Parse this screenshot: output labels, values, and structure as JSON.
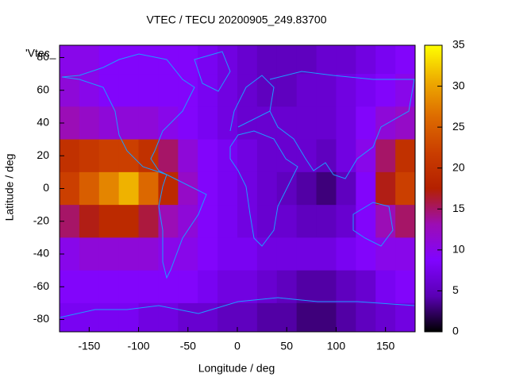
{
  "chart_data": {
    "type": "heatmap",
    "title": "VTEC / TECU 20200905_249.83700",
    "xlabel": "Longitude / deg",
    "ylabel": "Latitude / deg",
    "key_label": "'Vtec_",
    "x": [
      -170,
      -150,
      -130,
      -110,
      -90,
      -70,
      -50,
      -30,
      -10,
      10,
      30,
      50,
      70,
      90,
      110,
      130,
      150,
      170
    ],
    "y": [
      80,
      60,
      40,
      20,
      0,
      -20,
      -40,
      -60,
      -80
    ],
    "z": [
      [
        10,
        10,
        9,
        9,
        9,
        9,
        9,
        8,
        7,
        6,
        5,
        5,
        5,
        6,
        6,
        7,
        8,
        9
      ],
      [
        11,
        10,
        9,
        9,
        9,
        9,
        9,
        8,
        7,
        6,
        5,
        5,
        6,
        6,
        7,
        8,
        9,
        10
      ],
      [
        13,
        12,
        11,
        11,
        11,
        10,
        9,
        8,
        7,
        6,
        6,
        6,
        6,
        6,
        7,
        9,
        11,
        12
      ],
      [
        20,
        21,
        22,
        22,
        20,
        15,
        11,
        9,
        8,
        7,
        6,
        6,
        6,
        5,
        7,
        10,
        15,
        20
      ],
      [
        22,
        25,
        28,
        31,
        26,
        19,
        12,
        9,
        8,
        7,
        6,
        5,
        4,
        3,
        5,
        9,
        17,
        22
      ],
      [
        15,
        17,
        19,
        19,
        16,
        13,
        11,
        9,
        8,
        7,
        6,
        6,
        5,
        5,
        6,
        9,
        13,
        15
      ],
      [
        10,
        11,
        11,
        11,
        11,
        10,
        10,
        9,
        8,
        8,
        7,
        7,
        7,
        7,
        8,
        9,
        10,
        10
      ],
      [
        9,
        9,
        9,
        9,
        9,
        9,
        9,
        8,
        7,
        7,
        6,
        5,
        4,
        4,
        5,
        6,
        8,
        9
      ],
      [
        8,
        8,
        8,
        8,
        7,
        7,
        6,
        6,
        5,
        5,
        4,
        4,
        3,
        3,
        4,
        5,
        6,
        7
      ]
    ],
    "cell_size": 20,
    "xlim": [
      -180,
      180
    ],
    "ylim": [
      -87.5,
      87.5
    ],
    "xticks": [
      -150,
      -100,
      -50,
      0,
      50,
      100,
      150
    ],
    "yticks": [
      -80,
      -60,
      -40,
      -20,
      0,
      20,
      40,
      60,
      80
    ],
    "zlim": [
      0,
      35
    ],
    "zticks": [
      0,
      5,
      10,
      15,
      20,
      25,
      30,
      35
    ],
    "colorscale": [
      "#000000",
      "#5a00b4",
      "#8004ff",
      "#9c0db4",
      "#b42000",
      "#ca3e00",
      "#dd6b00",
      "#eeab00",
      "#ffff00"
    ]
  }
}
